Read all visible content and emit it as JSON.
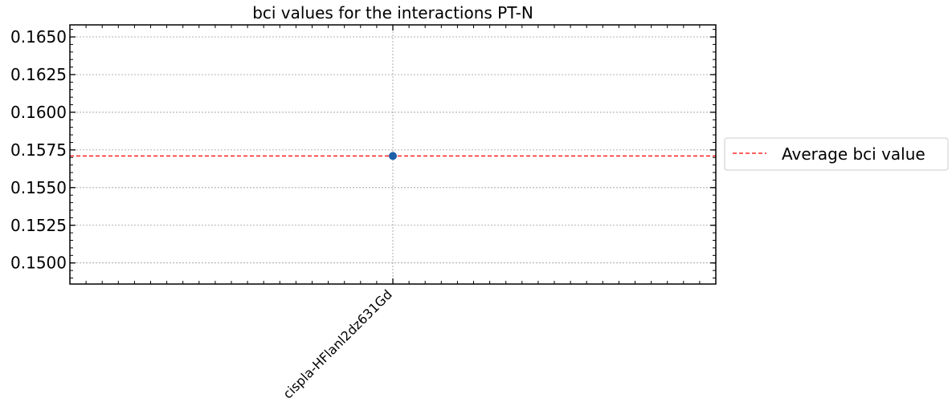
{
  "chart_data": {
    "type": "scatter",
    "title": "bci values for the interactions PT-N",
    "xlabel": "",
    "ylabel": "",
    "categories": [
      "cispla-HFlanl2dz631Gd"
    ],
    "series": [
      {
        "values": [
          0.1571
        ],
        "color": "#1f5fa8"
      }
    ],
    "average": {
      "name": "Average bci value",
      "value": 0.1571,
      "color": "#ff0000",
      "style": "dashed"
    },
    "ylim": [
      0.1486,
      0.1658
    ],
    "yticks": [
      0.15,
      0.1525,
      0.155,
      0.1575,
      0.16,
      0.1625,
      0.165
    ],
    "ytick_labels": [
      "0.1500",
      "0.1525",
      "0.1550",
      "0.1575",
      "0.1600",
      "0.1625",
      "0.1650"
    ],
    "grid": true,
    "legend_position": "outside-right"
  }
}
